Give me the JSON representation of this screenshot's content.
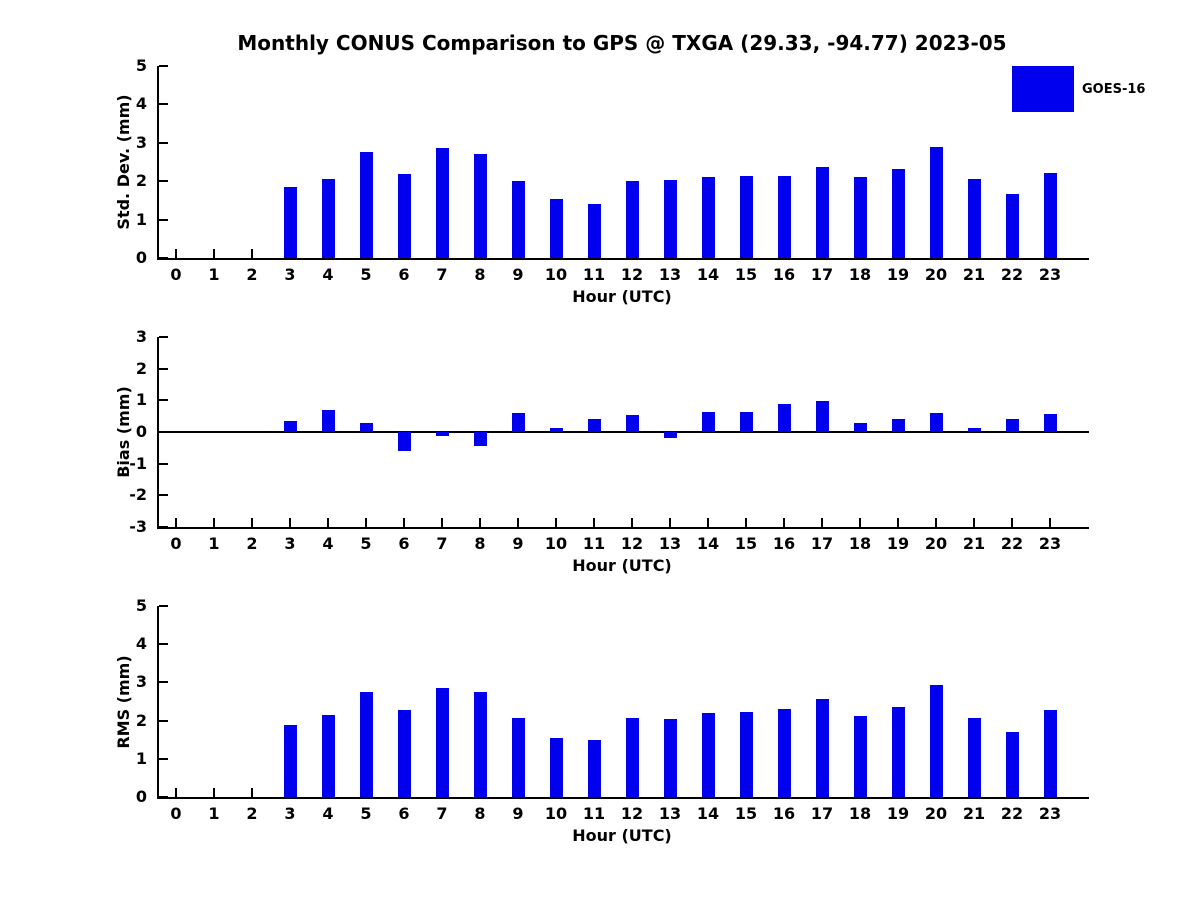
{
  "title": "Monthly CONUS Comparison to GPS @ TXGA (29.33, -94.77) 2023-05",
  "legend": {
    "label": "GOES-16",
    "color": "#0000EE"
  },
  "colors": {
    "bar": "#0000EE",
    "axis": "#000000",
    "background": "#ffffff"
  },
  "chart_data": [
    {
      "type": "bar",
      "panel": "std-dev",
      "ylabel": "Std. Dev. (mm)",
      "xlabel": "Hour (UTC)",
      "ylim": [
        0,
        5
      ],
      "yticks": [
        0,
        1,
        2,
        3,
        4,
        5
      ],
      "grid": false,
      "legend_position": "top-right",
      "x": [
        0,
        1,
        2,
        3,
        4,
        5,
        6,
        7,
        8,
        9,
        10,
        11,
        12,
        13,
        14,
        15,
        16,
        17,
        18,
        19,
        20,
        21,
        22,
        23
      ],
      "series": [
        {
          "name": "GOES-16",
          "values": [
            null,
            null,
            null,
            1.85,
            2.06,
            2.77,
            2.19,
            2.87,
            2.71,
            2.0,
            1.53,
            1.41,
            2.0,
            2.03,
            2.1,
            2.14,
            2.13,
            2.37,
            2.11,
            2.31,
            2.89,
            2.06,
            1.67,
            2.22
          ]
        }
      ]
    },
    {
      "type": "bar",
      "panel": "bias",
      "ylabel": "Bias (mm)",
      "xlabel": "Hour (UTC)",
      "ylim": [
        -3,
        3
      ],
      "yticks": [
        -3,
        -2,
        -1,
        0,
        1,
        2,
        3
      ],
      "grid": false,
      "zero_line": true,
      "x": [
        0,
        1,
        2,
        3,
        4,
        5,
        6,
        7,
        8,
        9,
        10,
        11,
        12,
        13,
        14,
        15,
        16,
        17,
        18,
        19,
        20,
        21,
        22,
        23
      ],
      "series": [
        {
          "name": "GOES-16",
          "values": [
            null,
            null,
            null,
            0.34,
            0.7,
            0.28,
            -0.6,
            -0.13,
            -0.44,
            0.59,
            0.13,
            0.42,
            0.55,
            -0.18,
            0.64,
            0.63,
            0.9,
            0.98,
            0.27,
            0.42,
            0.6,
            0.13,
            0.42,
            0.58
          ]
        }
      ]
    },
    {
      "type": "bar",
      "panel": "rms",
      "ylabel": "RMS (mm)",
      "xlabel": "Hour (UTC)",
      "ylim": [
        0,
        5
      ],
      "yticks": [
        0,
        1,
        2,
        3,
        4,
        5
      ],
      "grid": false,
      "x": [
        0,
        1,
        2,
        3,
        4,
        5,
        6,
        7,
        8,
        9,
        10,
        11,
        12,
        13,
        14,
        15,
        16,
        17,
        18,
        19,
        20,
        21,
        22,
        23
      ],
      "series": [
        {
          "name": "GOES-16",
          "values": [
            null,
            null,
            null,
            1.89,
            2.15,
            2.75,
            2.28,
            2.85,
            2.74,
            2.08,
            1.54,
            1.48,
            2.08,
            2.05,
            2.2,
            2.22,
            2.3,
            2.56,
            2.11,
            2.35,
            2.92,
            2.06,
            1.7,
            2.27
          ]
        }
      ]
    }
  ]
}
